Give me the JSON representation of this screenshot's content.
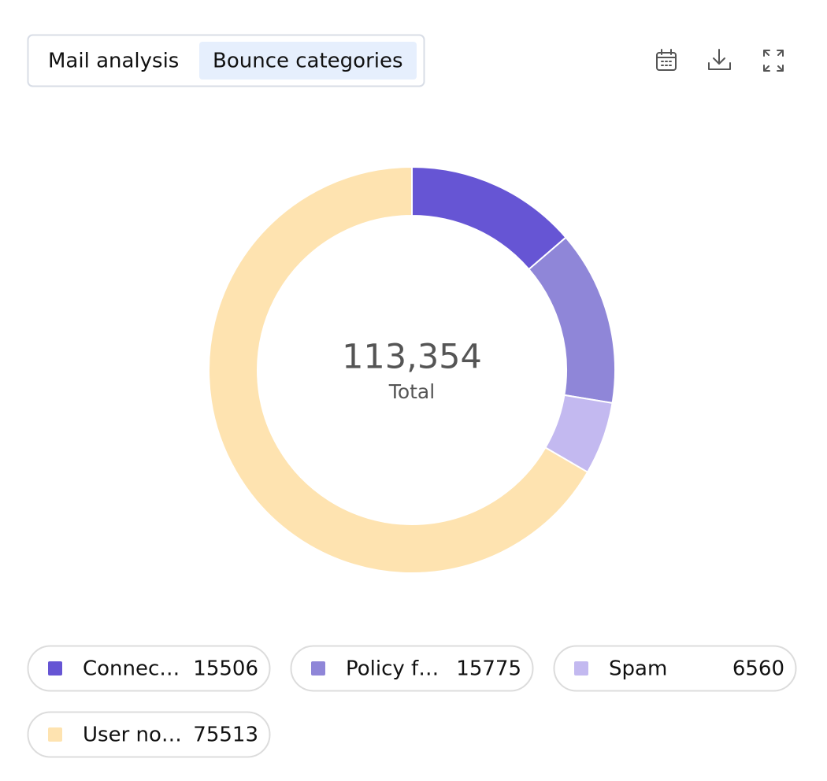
{
  "tabs": [
    "Mail analysis",
    "Bounce categories"
  ],
  "chart_data": {
    "type": "pie",
    "categories": [
      "Connec…",
      "Policy f…",
      "Spam",
      "User no…"
    ],
    "values": [
      15506,
      15775,
      6560,
      75513
    ],
    "colors": [
      "#6655d4",
      "#8f86d8",
      "#c3b9f0",
      "#fee3b0"
    ],
    "total": {
      "value": 113354,
      "label": "113,354"
    },
    "total_caption": "Total"
  }
}
